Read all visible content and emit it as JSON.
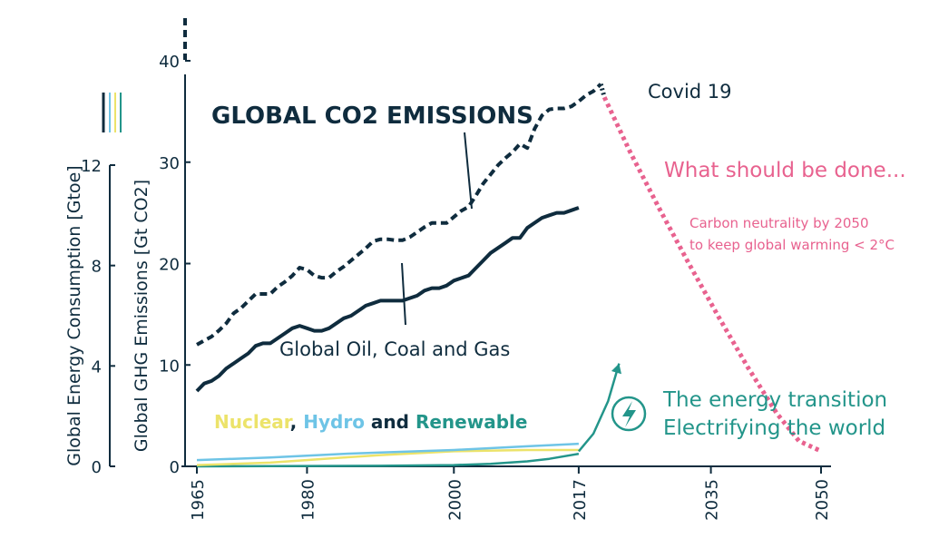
{
  "chart_data": {
    "type": "line",
    "title": "GLOBAL CO2 EMISSIONS",
    "left_axis": {
      "label": "Global Energy Consumption [Gtoe]",
      "ticks": [
        "0",
        "4",
        "8",
        "12"
      ],
      "ylim": [
        0,
        12
      ]
    },
    "right_axis": {
      "label": "Global GHG Emissions [Gt CO2]",
      "ticks": [
        "0",
        "10",
        "20",
        "30",
        "40"
      ],
      "ylim": [
        0,
        40
      ]
    },
    "x_ticks": [
      "1965",
      "1980",
      "2000",
      "2017",
      "2035",
      "2050"
    ],
    "xlim": [
      1965,
      2050
    ],
    "colors": {
      "dark": "#0f2c3e",
      "pink": "#e8628f",
      "teal": "#23958a",
      "yellow": "#ece36a",
      "blue": "#6ec4e6"
    },
    "series": [
      {
        "name": "GLOBAL CO2 EMISSIONS",
        "style": "dashed",
        "x": [
          1965,
          1966,
          1967,
          1968,
          1969,
          1970,
          1971,
          1972,
          1973,
          1974,
          1975,
          1976,
          1977,
          1978,
          1979,
          1980,
          1981,
          1982,
          1983,
          1984,
          1985,
          1986,
          1987,
          1988,
          1989,
          1990,
          1991,
          1992,
          1993,
          1994,
          1995,
          1996,
          1997,
          1998,
          1999,
          2000,
          2001,
          2002,
          2003,
          2004,
          2005,
          2006,
          2007,
          2008,
          2009,
          2010,
          2011,
          2012,
          2013,
          2014,
          2015,
          2016,
          2017,
          2018,
          2019,
          2020
        ],
        "y": [
          12.0,
          12.4,
          12.8,
          13.4,
          14.1,
          15.1,
          15.6,
          16.3,
          17.0,
          17.0,
          17.0,
          17.7,
          18.2,
          18.8,
          19.6,
          19.4,
          18.8,
          18.6,
          18.6,
          19.2,
          19.7,
          20.3,
          20.9,
          21.5,
          22.2,
          22.4,
          22.4,
          22.3,
          22.3,
          22.6,
          23.1,
          23.6,
          24.0,
          24.0,
          24.0,
          24.6,
          25.2,
          25.6,
          26.7,
          27.9,
          28.8,
          29.7,
          30.4,
          31.0,
          31.8,
          31.4,
          33.3,
          34.6,
          35.2,
          35.3,
          35.3,
          35.5,
          36.0,
          36.6,
          37.0,
          37.7
        ]
      },
      {
        "name": "Global Oil, Coal and Gas",
        "style": "solid",
        "x": [
          1965,
          1966,
          1967,
          1968,
          1969,
          1970,
          1971,
          1972,
          1973,
          1974,
          1975,
          1976,
          1977,
          1978,
          1979,
          1980,
          1981,
          1982,
          1983,
          1984,
          1985,
          1986,
          1987,
          1988,
          1989,
          1990,
          1991,
          1992,
          1993,
          1994,
          1995,
          1996,
          1997,
          1998,
          1999,
          2000,
          2001,
          2002,
          2003,
          2004,
          2005,
          2006,
          2007,
          2008,
          2009,
          2010,
          2011,
          2012,
          2013,
          2014,
          2015,
          2016,
          2017
        ],
        "y": [
          3.0,
          3.3,
          3.4,
          3.6,
          3.9,
          4.1,
          4.3,
          4.5,
          4.8,
          4.9,
          4.9,
          5.1,
          5.3,
          5.5,
          5.6,
          5.5,
          5.4,
          5.4,
          5.5,
          5.7,
          5.9,
          6.0,
          6.2,
          6.4,
          6.5,
          6.6,
          6.6,
          6.6,
          6.6,
          6.7,
          6.8,
          7.0,
          7.1,
          7.1,
          7.2,
          7.4,
          7.5,
          7.6,
          7.9,
          8.2,
          8.5,
          8.7,
          8.9,
          9.1,
          9.1,
          9.5,
          9.7,
          9.9,
          10.0,
          10.1,
          10.1,
          10.2,
          10.3
        ]
      },
      {
        "name": "Nuclear",
        "style": "solid",
        "x": [
          1965,
          1975,
          1985,
          1990,
          2000,
          2010,
          2017
        ],
        "y": [
          0.05,
          0.15,
          0.35,
          0.45,
          0.6,
          0.65,
          0.65
        ]
      },
      {
        "name": "Hydro",
        "style": "solid",
        "x": [
          1965,
          1975,
          1985,
          1990,
          2000,
          2010,
          2017
        ],
        "y": [
          0.25,
          0.35,
          0.5,
          0.55,
          0.65,
          0.8,
          0.9
        ]
      },
      {
        "name": "Renewable",
        "style": "solid",
        "x": [
          1965,
          1990,
          2000,
          2005,
          2010,
          2013,
          2017
        ],
        "y": [
          0.0,
          0.02,
          0.05,
          0.1,
          0.2,
          0.3,
          0.5
        ]
      },
      {
        "name": "Covid 19",
        "style": "dotted",
        "x": [
          2020,
          2020.5
        ],
        "y": [
          37.7,
          36.4
        ]
      },
      {
        "name": "What should be done...",
        "style": "dotted",
        "x": [
          2020.5,
          2024,
          2028,
          2032,
          2036,
          2040,
          2044,
          2047,
          2050
        ],
        "y": [
          36.4,
          31.0,
          25.4,
          20.0,
          14.8,
          9.8,
          5.2,
          2.5,
          1.5
        ]
      },
      {
        "name": "The energy transition Electrifying the world",
        "style": "arrow",
        "x": [
          2017,
          2019,
          2021,
          2022.5
        ],
        "y": [
          0.6,
          1.3,
          2.6,
          4.1
        ]
      }
    ],
    "annotations": {
      "covid": "Covid 19",
      "should": "What should be done...",
      "neutral1": "Carbon neutrality by 2050",
      "neutral2": "to keep global warming < 2°C",
      "fossil": "Global Oil, Coal and Gas",
      "nuclear": "Nuclear",
      "comma": ",",
      "hydro": "Hydro",
      "and": "and",
      "renewable": "Renewable",
      "transition1": "The energy transition",
      "transition2": "Electrifying the world"
    }
  }
}
